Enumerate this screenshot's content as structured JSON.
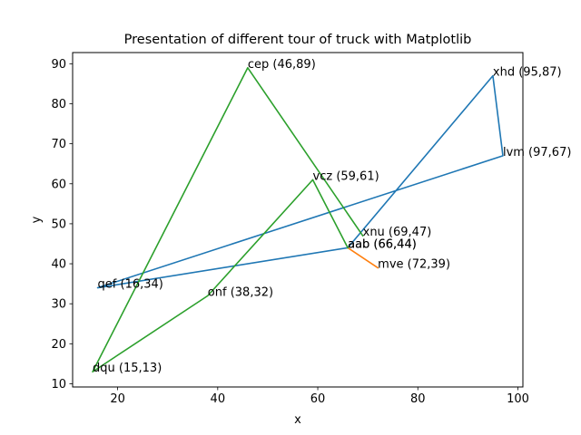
{
  "chart_data": {
    "type": "line",
    "title": "Presentation of different tour of truck with Matplotlib",
    "xlabel": "x",
    "ylabel": "y",
    "xlim": [
      11,
      101
    ],
    "ylim": [
      9.2,
      92.8
    ],
    "xticks": [
      20,
      40,
      60,
      80,
      100
    ],
    "yticks": [
      10,
      20,
      30,
      40,
      50,
      60,
      70,
      80,
      90
    ],
    "grid": false,
    "legend": "none",
    "points": [
      {
        "id": "cep",
        "x": 46,
        "y": 89,
        "label": "cep (46,89)"
      },
      {
        "id": "xhd",
        "x": 95,
        "y": 87,
        "label": "xhd (95,87)"
      },
      {
        "id": "lvm",
        "x": 97,
        "y": 67,
        "label": "lvm (97,67)"
      },
      {
        "id": "vcz",
        "x": 59,
        "y": 61,
        "label": "vcz (59,61)"
      },
      {
        "id": "xnu",
        "x": 69,
        "y": 47,
        "label": "xnu (69,47)"
      },
      {
        "id": "aab",
        "x": 66,
        "y": 44,
        "label": "aab (66,44)"
      },
      {
        "id": "aab2",
        "x": 66,
        "y": 44,
        "label": "aab (66,44)"
      },
      {
        "id": "mve",
        "x": 72,
        "y": 39,
        "label": "mve (72,39)"
      },
      {
        "id": "qef",
        "x": 16,
        "y": 34,
        "label": "qef (16,34)"
      },
      {
        "id": "onf",
        "x": 38,
        "y": 32,
        "label": "onf (38,32)"
      },
      {
        "id": "dqu",
        "x": 15,
        "y": 13,
        "label": "dqu (15,13)"
      }
    ],
    "series": [
      {
        "color": "#1f77b4",
        "x": [
          66,
          95,
          97,
          16,
          66
        ],
        "y": [
          44,
          87,
          67,
          34,
          44
        ]
      },
      {
        "color": "#ff7f0e",
        "x": [
          66,
          72
        ],
        "y": [
          44,
          39
        ]
      },
      {
        "color": "#2ca02c",
        "x": [
          66,
          59,
          38,
          15,
          46,
          69
        ],
        "y": [
          44,
          61,
          32,
          13,
          89,
          47
        ]
      }
    ]
  }
}
